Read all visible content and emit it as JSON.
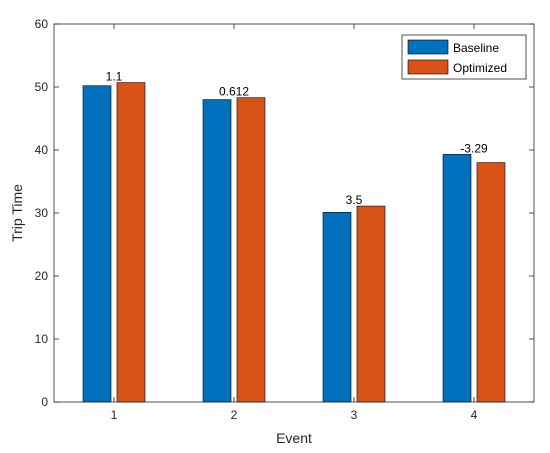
{
  "chart_data": {
    "type": "bar",
    "title": "",
    "xlabel": "Event",
    "ylabel": "Trip Time",
    "categories": [
      "1",
      "2",
      "3",
      "4"
    ],
    "series": [
      {
        "name": "Baseline",
        "color": "#0072BD",
        "values": [
          50.2,
          48.0,
          30.1,
          39.3
        ]
      },
      {
        "name": "Optimized",
        "color": "#D95319",
        "values": [
          50.7,
          48.3,
          31.1,
          38.0
        ]
      }
    ],
    "data_labels": [
      "1.1",
      "0.612",
      "3.5",
      "-3.29"
    ],
    "ylim": [
      0,
      60
    ],
    "yticks": [
      0,
      10,
      20,
      30,
      40,
      50,
      60
    ],
    "grid": false,
    "legend_position": "top-right"
  }
}
